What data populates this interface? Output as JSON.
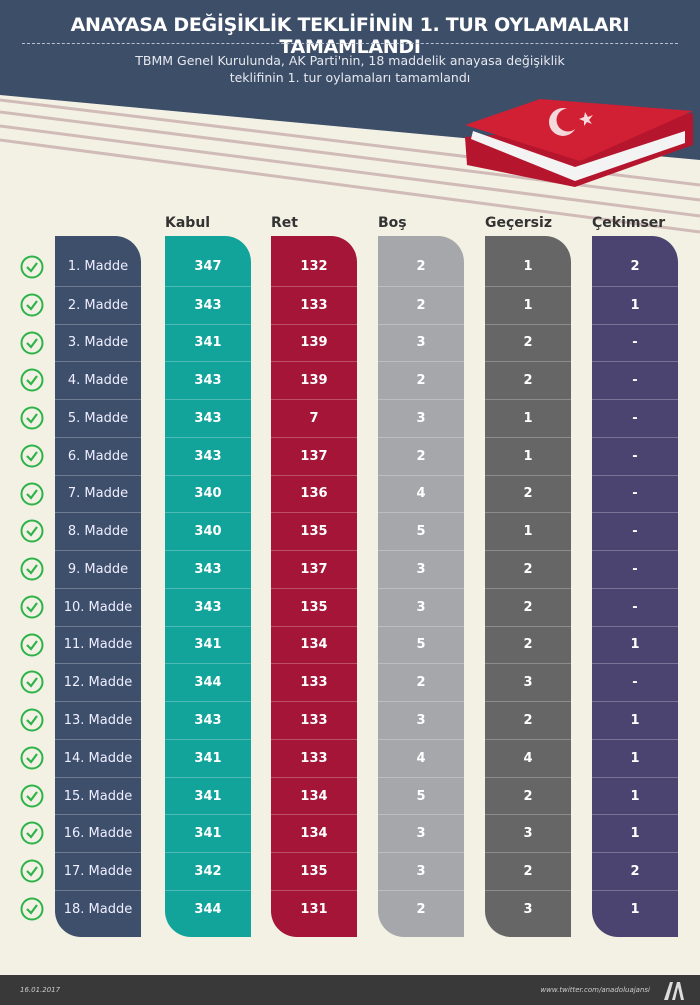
{
  "header": {
    "title": "ANAYASA DEĞİŞİKLİK TEKLİFİNİN 1. TUR OYLAMALARI TAMAMLANDI",
    "subtitle_line1": "TBMM Genel Kurulunda, AK Parti'nin, 18 maddelik anayasa değişiklik",
    "subtitle_line2": "teklifinin 1. tur oylamaları tamamlandı"
  },
  "footer": {
    "date": "16.01.2017",
    "twitter": "www.twitter.com/anadoluajansi",
    "logo": "AA"
  },
  "colors": {
    "header": "#3d4e69",
    "label_col": "#3e4f6c",
    "kabul": "#12a39a",
    "ret": "#a51538",
    "bos": "#a6a7ab",
    "gecersiz": "#666666",
    "cekimser": "#4b4470",
    "check": "#2db34a"
  },
  "icons": {
    "row_status": "check-circle-icon",
    "book": "turkish-flag-book-icon"
  },
  "chart_data": {
    "type": "table",
    "columns": [
      "Kabul",
      "Ret",
      "Boş",
      "Geçersiz",
      "Çekimser"
    ],
    "rows": [
      "1. Madde",
      "2. Madde",
      "3. Madde",
      "4. Madde",
      "5. Madde",
      "6. Madde",
      "7. Madde",
      "8. Madde",
      "9. Madde",
      "10. Madde",
      "11. Madde",
      "12. Madde",
      "13. Madde",
      "14. Madde",
      "15. Madde",
      "16. Madde",
      "17. Madde",
      "18. Madde"
    ],
    "series": [
      {
        "name": "Kabul",
        "values": [
          "347",
          "343",
          "341",
          "343",
          "343",
          "343",
          "340",
          "340",
          "343",
          "343",
          "341",
          "344",
          "343",
          "341",
          "341",
          "341",
          "342",
          "344"
        ]
      },
      {
        "name": "Ret",
        "values": [
          "132",
          "133",
          "139",
          "139",
          "7",
          "137",
          "136",
          "135",
          "137",
          "135",
          "134",
          "133",
          "133",
          "133",
          "134",
          "134",
          "135",
          "131"
        ]
      },
      {
        "name": "Boş",
        "values": [
          "2",
          "2",
          "3",
          "2",
          "3",
          "2",
          "4",
          "5",
          "3",
          "3",
          "5",
          "2",
          "3",
          "4",
          "5",
          "3",
          "3",
          "2"
        ]
      },
      {
        "name": "Geçersiz",
        "values": [
          "1",
          "1",
          "2",
          "2",
          "1",
          "1",
          "2",
          "1",
          "2",
          "2",
          "2",
          "3",
          "2",
          "4",
          "2",
          "3",
          "2",
          "3"
        ]
      },
      {
        "name": "Çekimser",
        "values": [
          "2",
          "1",
          "-",
          "-",
          "-",
          "-",
          "-",
          "-",
          "-",
          "-",
          "1",
          "-",
          "1",
          "1",
          "1",
          "1",
          "2",
          "1"
        ]
      }
    ]
  }
}
